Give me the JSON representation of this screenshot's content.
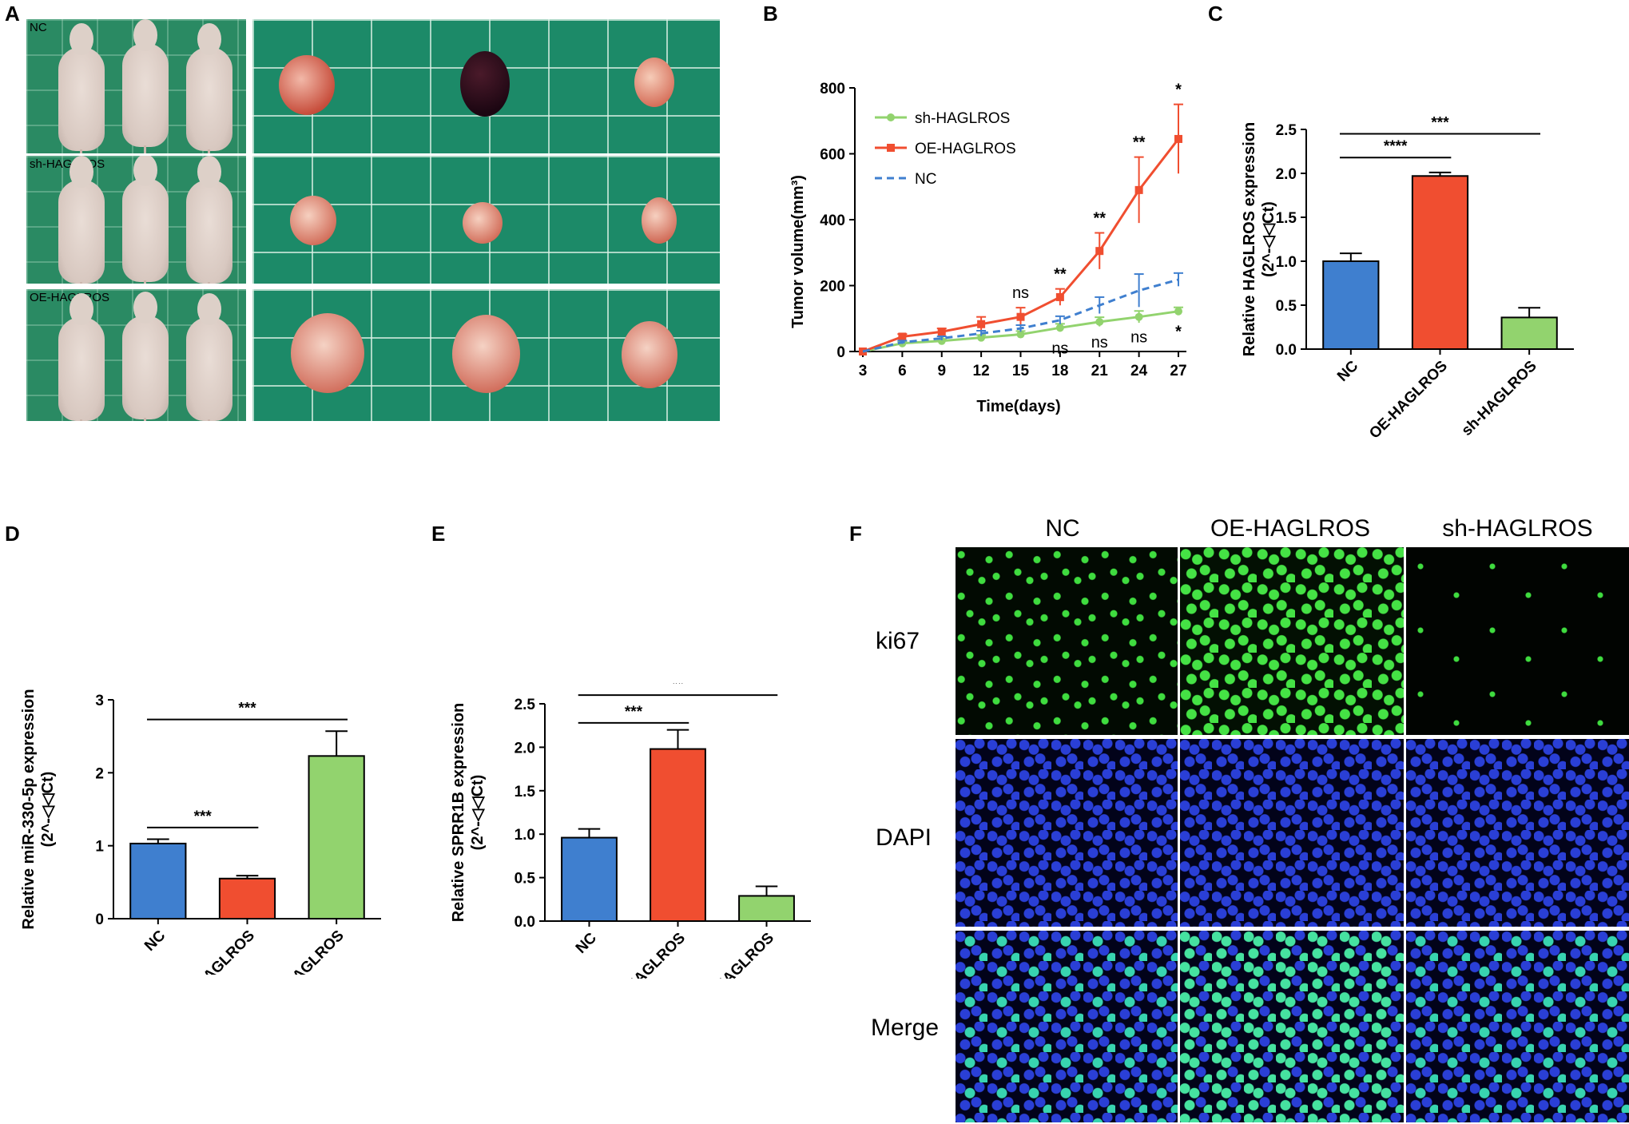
{
  "figure": {
    "panel_letters": {
      "A": "A",
      "B": "B",
      "C": "C",
      "D": "D",
      "E": "E",
      "F": "F"
    }
  },
  "panel_a": {
    "row_labels": [
      "NC",
      "sh-HAGLROS",
      "OE-HAGLROS"
    ]
  },
  "panel_f": {
    "column_labels": [
      "NC",
      "OE-HAGLROS",
      "sh-HAGLROS"
    ],
    "row_labels": [
      "ki67",
      "DAPI",
      "Merge"
    ]
  },
  "colors": {
    "blue": "#3f7fcf",
    "red": "#f04e30",
    "green": "#92d36e"
  },
  "chart_data": [
    {
      "id": "B",
      "type": "line",
      "xlabel": "Time(days)",
      "ylabel": "Tumor volume(mm³)",
      "x": [
        3,
        6,
        9,
        12,
        15,
        18,
        21,
        24,
        27
      ],
      "xlim": [
        3,
        27
      ],
      "ylim": [
        0,
        800
      ],
      "yticks": [
        0,
        200,
        400,
        600,
        800
      ],
      "legend_position": "top-left",
      "series": [
        {
          "name": "sh-HAGLROS",
          "color": "#92d36e",
          "style": "solid",
          "marker": "circle",
          "values": [
            0,
            25,
            32,
            42,
            52,
            72,
            90,
            105,
            122
          ],
          "errors": [
            0,
            5,
            6,
            8,
            10,
            12,
            14,
            18,
            12
          ]
        },
        {
          "name": "OE-HAGLROS",
          "color": "#f04e30",
          "style": "solid",
          "marker": "square",
          "values": [
            0,
            45,
            60,
            83,
            105,
            165,
            305,
            490,
            645
          ],
          "errors": [
            0,
            8,
            10,
            22,
            28,
            25,
            55,
            100,
            105
          ]
        },
        {
          "name": "NC",
          "color": "#3f7fcf",
          "style": "dashed",
          "marker": "none",
          "values": [
            0,
            28,
            40,
            55,
            70,
            95,
            140,
            185,
            218
          ],
          "errors": [
            0,
            5,
            6,
            8,
            10,
            12,
            25,
            50,
            20
          ]
        }
      ],
      "annotations_top": [
        {
          "x": 15,
          "text": "ns"
        },
        {
          "x": 18,
          "text": "**"
        },
        {
          "x": 21,
          "text": "**"
        },
        {
          "x": 24,
          "text": "**"
        },
        {
          "x": 27,
          "text": "*"
        }
      ],
      "annotations_bottom": [
        {
          "x": 18,
          "text": "ns"
        },
        {
          "x": 21,
          "text": "ns"
        },
        {
          "x": 24,
          "text": "ns"
        },
        {
          "x": 27,
          "text": "*"
        }
      ]
    },
    {
      "id": "C",
      "type": "bar",
      "ylabel": "Relative HAGLROS expression",
      "ylabel2": "(2^-◁◁Ct)",
      "categories": [
        "NC",
        "OE-HAGLROS",
        "sh-HAGLROS"
      ],
      "values": [
        1.0,
        1.97,
        0.36
      ],
      "errors": [
        0.09,
        0.04,
        0.11
      ],
      "colors": [
        "#3f7fcf",
        "#f04e30",
        "#92d36e"
      ],
      "ylim": [
        0,
        2.5
      ],
      "yticks": [
        "0.0",
        "0.5",
        "1.0",
        "1.5",
        "2.0",
        "2.5"
      ],
      "significance": [
        {
          "from": 0,
          "to": 1,
          "text": "****",
          "y": 2.18
        },
        {
          "from": 0,
          "to": 2,
          "text": "***",
          "y": 2.45
        }
      ]
    },
    {
      "id": "D",
      "type": "bar",
      "ylabel": "Relative miR-330-5p expression",
      "ylabel2": "(2^-◁◁Ct)",
      "categories": [
        "NC",
        "OE-HAGLROS",
        "sh-HAGLROS"
      ],
      "values": [
        1.03,
        0.55,
        2.23
      ],
      "errors": [
        0.06,
        0.04,
        0.34
      ],
      "colors": [
        "#3f7fcf",
        "#f04e30",
        "#92d36e"
      ],
      "ylim": [
        0,
        3
      ],
      "yticks": [
        "0",
        "1",
        "2",
        "3"
      ],
      "significance": [
        {
          "from": 0,
          "to": 1,
          "text": "***",
          "y": 1.25
        },
        {
          "from": 0,
          "to": 2,
          "text": "***",
          "y": 2.73
        }
      ]
    },
    {
      "id": "E",
      "type": "bar",
      "ylabel": "Relative SPRR1B expression",
      "ylabel2": "(2^-◁◁Ct)",
      "categories": [
        "NC",
        "OE-HAGLROS",
        "sh-HAGLROS"
      ],
      "values": [
        0.96,
        1.98,
        0.29
      ],
      "errors": [
        0.1,
        0.22,
        0.11
      ],
      "colors": [
        "#3f7fcf",
        "#f04e30",
        "#92d36e"
      ],
      "ylim": [
        0,
        2.5
      ],
      "yticks": [
        "0.0",
        "0.5",
        "1.0",
        "1.5",
        "2.0",
        "2.5"
      ],
      "significance": [
        {
          "from": 0,
          "to": 1,
          "text": "***",
          "y": 2.28
        },
        {
          "from": 0,
          "to": 2,
          "text": "**",
          "y": 2.6
        }
      ]
    }
  ]
}
